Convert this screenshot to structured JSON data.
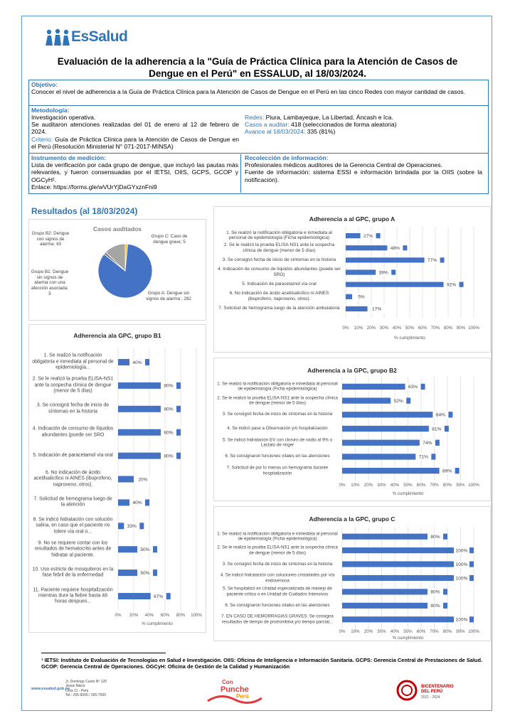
{
  "header": {
    "logo": "EsSalud",
    "title": "Evaluación de la adherencia a la \"Guía de Práctica Clínica para la Atención de Casos de Dengue en el Perú\" en ESSALUD, al 18/03/2024."
  },
  "objective": {
    "heading": "Objetivo:",
    "text": "Conocer el nivel de adherencia a la Guía de Práctica Clínica para la Atención de Casos de Dengue en el Perú en las cinco Redes con mayor cantidad de casos."
  },
  "methodology": {
    "heading": "Metodología:",
    "type": "Investigación operativa.",
    "period": "Se auditaron atenciones realizadas del 01 de enero al 12 de febrero de 2024.",
    "criterion_label": "Criterio:",
    "criterion_text": "Guía de Práctica Clínica para la Atención de Casos de Dengue en el Perú (Resolución Ministerial N° 071-2017-MINSA)",
    "networks_label": "Redes:",
    "networks_text": "Piura, Lambayeque, La Libertad, Áncash e Ica.",
    "cases_label": "Casos a auditar:",
    "cases_text": "418 (seleccionados de forma aleatoria)",
    "progress_label": "Avance al 18/03/2024:",
    "progress_text": "335 (81%)"
  },
  "instrument": {
    "heading": "Instrumento de medición:",
    "text": "Lista de verificación por cada grupo de dengue, que incluyó las pautas más relevantes, y fueron consensuadas por el IETSI, OIIS, GCPS, GCOP y OGCyH¹.",
    "link": "Enlace: https://forms.gle/wVUrYjDaGYxznFni9"
  },
  "collection": {
    "heading": "Recolección de información:",
    "text": "Profesionales médicos auditores de la Gerencia Central de Operaciones.",
    "source": "Fuente de información: sistema ESSI e información brindada por la OIIS (sobre la notificación)."
  },
  "results_heading": "Resultados (al 18/03/2024)",
  "chart_data": [
    {
      "type": "pie",
      "title": "Casos auditados",
      "values": [
        5,
        282,
        5,
        43
      ],
      "value_labels": [
        "Grupo C: Caso de dengue grave; 5",
        "Grupo A: Dengue sin signos de alarma ; 282",
        "Grupo B1: Dengue sin signos de alarma con una afección asociada; 5",
        "Grupo B2: Dengue con signos de alarma; 43"
      ],
      "colors": [
        "#ffc000",
        "#4472c4",
        "#7f7f7f",
        "#a5a5a5"
      ]
    },
    {
      "type": "hbar",
      "title": "Adherencia a al GPC, grupo A",
      "xlabel": "% cumplimiento",
      "color": "#4472c4",
      "categories": [
        "1. Se realizó la notificación obligatoria e inmediata al personal de epidemiología (Ficha epidemiológica)",
        "2. Se le realizó la prueba ELISA-NS1 ante la sospecha clínica de dengue (menor de 5 días)",
        "3. Se consignó fecha de inicio de síntomas en la historia",
        "4. Indicación de consumo de líquidos abundantes (puede ser SRO)",
        "5. Indicación de paracetamol vía oral",
        "6. No indicación de ácido acetilsalicílico ni AINES (ibuprofeno, naproxeno, otros).",
        "7. Solicitud de hemograma luego de la atención ambulatoria"
      ],
      "values": [
        27,
        48,
        77,
        39,
        92,
        5,
        17
      ],
      "value_labels": [
        "27%",
        "48%",
        "77%",
        "39%",
        "92%",
        "5%",
        "17%"
      ],
      "xlim": [
        0,
        100
      ],
      "xticks": [
        {
          "value": 0,
          "label": "0%"
        },
        {
          "value": 10,
          "label": "10%"
        },
        {
          "value": 20,
          "label": "20%"
        },
        {
          "value": 30,
          "label": "30%"
        },
        {
          "value": 40,
          "label": "40%"
        },
        {
          "value": 50,
          "label": "50%"
        },
        {
          "value": 60,
          "label": "60%"
        },
        {
          "value": 70,
          "label": "70%"
        },
        {
          "value": 80,
          "label": "80%"
        },
        {
          "value": 90,
          "label": "90%"
        },
        {
          "value": 100,
          "label": "100%"
        }
      ],
      "grid": true
    },
    {
      "type": "hbar",
      "title": "Adherencia ala GPC, grupo B1",
      "xlabel": "% cumplimiento",
      "color": "#4472c4",
      "categories": [
        "1. Se realizó la notificación obligatoria e inmediata al personal de epidemiología...",
        "2. Se le realizó la prueba ELISA-NS1 ante la sospecha clínica de dengue (menor de 5 días)",
        "3. Se consignó fecha de inicio de síntomas en la historia",
        "4. Indicación de consumo de líquidos abundantes (puede ser SRO",
        "5. Indicación de paracetamol vía oral",
        "6. No indicación de ácido acetilsalicílico ni AINES (ibuprofeno, naproxeno, otros).",
        "7. Solicitud de hemograma luego de la atención",
        "8. Se indicó hidratación con solución salina, en caso que el paciente no tolere vía oral o...",
        "9. No se requiere contar con los resultados de hematocrito antes de hidratar al paciente.",
        "10. Uso estricto de mosquiteros en la fase febril de la enfermedad",
        "11. Paciente requiere hospitalización mientras dure la fiebre hasta 48 horas despues..."
      ],
      "values": [
        40,
        80,
        80,
        80,
        80,
        20,
        40,
        33,
        50,
        50,
        67
      ],
      "value_labels": [
        "40%",
        "80%",
        "80%",
        "80%",
        "80%",
        "20%",
        "40%",
        "33%",
        "50%",
        "50%",
        "67%"
      ],
      "xlim": [
        0,
        100
      ],
      "xticks": [
        {
          "value": 0,
          "label": "0%"
        },
        {
          "value": 20,
          "label": "20%"
        },
        {
          "value": 40,
          "label": "40%"
        },
        {
          "value": 60,
          "label": "60%"
        },
        {
          "value": 80,
          "label": "80%"
        },
        {
          "value": 100,
          "label": "100%"
        }
      ],
      "grid": true
    },
    {
      "type": "hbar",
      "title": "Adherencia a la GPC, grupo B2",
      "xlabel": "% cumplimiento",
      "color": "#4472c4",
      "categories": [
        "1. Se realizó la notificación obligatoria e inmediata al personal de epidemiología (Ficha epidemiológica)",
        "2. Se le realizó la prueba ELISA-NS1 ante la sospecha clínica de dengue (menor de 5 días)",
        "3. Se consignó fecha de inicio de síntomas en la historia",
        "4. Se indicó pase a Observación y/o hospitalización",
        "5. Se indicó hidratación EV con cloruro de sodio al 9% o Lactato de ringer",
        "6. Se consignaron funciones vitales en las atenciones",
        "7. Solicitud de por lo menos un hemograma durante hospitalización"
      ],
      "values": [
        63,
        52,
        84,
        81,
        74,
        71,
        89
      ],
      "value_labels": [
        "63%",
        "52%",
        "84%",
        "81%",
        "74%",
        "71%",
        "89%"
      ],
      "xlim": [
        0,
        100
      ],
      "xticks": [
        {
          "value": 0,
          "label": "0%"
        },
        {
          "value": 10,
          "label": "10%"
        },
        {
          "value": 20,
          "label": "20%"
        },
        {
          "value": 30,
          "label": "30%"
        },
        {
          "value": 40,
          "label": "40%"
        },
        {
          "value": 50,
          "label": "50%"
        },
        {
          "value": 60,
          "label": "60%"
        },
        {
          "value": 70,
          "label": "70%"
        },
        {
          "value": 80,
          "label": "80%"
        },
        {
          "value": 90,
          "label": "90%"
        },
        {
          "value": 100,
          "label": "100%"
        }
      ],
      "grid": true
    },
    {
      "type": "hbar",
      "title": "Adherencia a la GPC, grupo C",
      "xlabel": "% cumplimiento",
      "color": "#4472c4",
      "categories": [
        "1. Se realizó la notificación obligatoria e inmediata al personal de epidemiología (Ficha epidemiológica)",
        "2. Se le realizó la prueba ELISA-NS1 ante la sospecha clínica de dengue (menor de 5 días)",
        "3. Se consignó fecha de inicio de síntomas en la historia",
        "4. Se indicó hidratación con soluciones cristaloides por vía endovenosa",
        "5. Se hospitalizó en Unidad especializada de manejo de paciente crítico o en Unidad de Cuidados Intensivos",
        "6. Se consignaron funciones vitales en las atenciones",
        "7. EN CASO DE HEMORRAGIAS GRAVES: Se consigna resultados de tiempo de protrombina y/o tiempo parcial..."
      ],
      "values": [
        80,
        100,
        100,
        100,
        80,
        80,
        100
      ],
      "value_labels": [
        "80%",
        "100%",
        "100%",
        "100%",
        "80%",
        "80%",
        "100%"
      ],
      "xlim": [
        0,
        100
      ],
      "xticks": [
        {
          "value": 0,
          "label": "0%"
        },
        {
          "value": 10,
          "label": "10%"
        },
        {
          "value": 20,
          "label": "20%"
        },
        {
          "value": 30,
          "label": "30%"
        },
        {
          "value": 40,
          "label": "40%"
        },
        {
          "value": 50,
          "label": "50%"
        },
        {
          "value": 60,
          "label": "60%"
        },
        {
          "value": 70,
          "label": "70%"
        },
        {
          "value": 80,
          "label": "80%"
        },
        {
          "value": 90,
          "label": "90%"
        },
        {
          "value": 100,
          "label": "100%"
        }
      ],
      "grid": true
    }
  ],
  "footnote": "¹ IETSI: Instituto de Evaluación de Tecnologías en Salud e Investigación. OIIS: Oficina de Inteligencia e Información Sanitaria. GCPS: Gerencia Central de Prestaciones de Salud. GCOP: Gerencia Central de Operaciones. OGCyH: Oficina de Gestión de la Calidad y Humanización",
  "footer": {
    "web": "www.essalud.gob.pe",
    "address": [
      "Jr. Domingo Cueto Nº 120",
      "Jesús María",
      "Lima 11 - Perú",
      "Tel.: 265-6000 / 265-7000"
    ],
    "campaign": [
      "Con",
      "Punche",
      "Perú"
    ],
    "bicentenary": [
      "BICENTENARIO",
      "DEL PERÚ",
      "2021 - 2024"
    ]
  }
}
